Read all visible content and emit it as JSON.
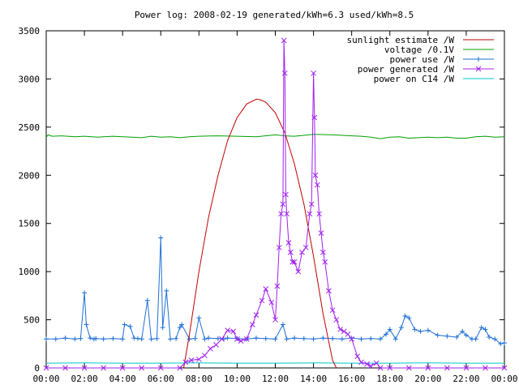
{
  "chart_data": {
    "type": "line",
    "title": "Power log: 2008-02-19 generated/kWh=6.3 used/kWh=8.5",
    "xlabel": "",
    "ylabel": "",
    "xlim": [
      0,
      24
    ],
    "ylim": [
      0,
      3500
    ],
    "x_ticks": [
      {
        "value": 0,
        "label": "00:00"
      },
      {
        "value": 2,
        "label": "02:00"
      },
      {
        "value": 4,
        "label": "04:00"
      },
      {
        "value": 6,
        "label": "06:00"
      },
      {
        "value": 8,
        "label": "08:00"
      },
      {
        "value": 10,
        "label": "10:00"
      },
      {
        "value": 12,
        "label": "12:00"
      },
      {
        "value": 14,
        "label": "14:00"
      },
      {
        "value": 16,
        "label": "16:00"
      },
      {
        "value": 18,
        "label": "18:00"
      },
      {
        "value": 20,
        "label": "20:00"
      },
      {
        "value": 22,
        "label": "22:00"
      },
      {
        "value": 24,
        "label": "00:00"
      }
    ],
    "y_ticks": [
      {
        "value": 0,
        "label": "0"
      },
      {
        "value": 500,
        "label": "500"
      },
      {
        "value": 1000,
        "label": "1000"
      },
      {
        "value": 1500,
        "label": "1500"
      },
      {
        "value": 2000,
        "label": "2000"
      },
      {
        "value": 2500,
        "label": "2500"
      },
      {
        "value": 3000,
        "label": "3000"
      },
      {
        "value": 3500,
        "label": "3500"
      }
    ],
    "grid": false,
    "legend_position": "top-right",
    "series": [
      {
        "name": "sunlight estimate /W",
        "color": "#c00000",
        "marker": "none",
        "x": [
          7.2,
          7.5,
          8.0,
          8.5,
          9.0,
          9.5,
          10.0,
          10.5,
          11.0,
          11.2,
          11.5,
          12.0,
          12.5,
          13.0,
          13.5,
          14.0,
          14.5,
          15.0,
          15.2
        ],
        "y": [
          0,
          350,
          1000,
          1560,
          2000,
          2360,
          2600,
          2740,
          2790,
          2785,
          2760,
          2650,
          2440,
          2120,
          1700,
          1160,
          560,
          80,
          0
        ]
      },
      {
        "name": "voltage /0.1V",
        "color": "#00a000",
        "marker": "none",
        "x": [
          0,
          0.1,
          0.3,
          0.8,
          1.5,
          2.0,
          2.7,
          3.0,
          3.5,
          4.0,
          4.5,
          5.0,
          5.5,
          6.0,
          6.5,
          7.0,
          7.5,
          8.0,
          9.0,
          10.0,
          11.0,
          12.0,
          12.5,
          13.0,
          14.0,
          15.0,
          16.0,
          16.5,
          17.0,
          17.5,
          18.0,
          18.5,
          19.0,
          19.5,
          20.0,
          20.5,
          21.0,
          21.5,
          22.0,
          22.5,
          23.0,
          23.5,
          24.0
        ],
        "y": [
          2395,
          2420,
          2405,
          2410,
          2400,
          2405,
          2395,
          2400,
          2405,
          2400,
          2395,
          2390,
          2405,
          2395,
          2400,
          2390,
          2400,
          2405,
          2410,
          2405,
          2400,
          2420,
          2410,
          2405,
          2425,
          2420,
          2410,
          2405,
          2395,
          2380,
          2395,
          2400,
          2385,
          2390,
          2395,
          2390,
          2395,
          2385,
          2385,
          2400,
          2405,
          2395,
          2400
        ]
      },
      {
        "name": "power use /W",
        "color": "#1f6fd6",
        "marker": "plus",
        "x": [
          0,
          0.5,
          1.0,
          1.5,
          1.8,
          2.0,
          2.1,
          2.3,
          2.5,
          2.6,
          3.0,
          3.5,
          4.0,
          4.1,
          4.4,
          4.6,
          4.8,
          5.0,
          5.3,
          5.5,
          5.8,
          6.0,
          6.1,
          6.3,
          6.5,
          6.8,
          7.0,
          7.1,
          7.5,
          7.8,
          8.0,
          8.3,
          8.5,
          9.0,
          9.3,
          9.5,
          10.0,
          10.5,
          11.0,
          11.5,
          12.0,
          12.4,
          12.6,
          13.0,
          13.5,
          14.0,
          14.5,
          15.0,
          15.5,
          16.0,
          16.5,
          17.0,
          17.5,
          17.8,
          18.0,
          18.3,
          18.6,
          18.8,
          19.0,
          19.3,
          19.6,
          20.0,
          20.5,
          21.0,
          21.5,
          21.8,
          22.0,
          22.3,
          22.5,
          22.8,
          23.0,
          23.2,
          23.5,
          23.8,
          24.0
        ],
        "y": [
          300,
          300,
          310,
          300,
          305,
          780,
          450,
          310,
          300,
          305,
          300,
          305,
          300,
          450,
          430,
          310,
          305,
          300,
          700,
          300,
          305,
          1350,
          420,
          800,
          300,
          305,
          420,
          450,
          300,
          305,
          520,
          300,
          310,
          305,
          300,
          310,
          305,
          300,
          310,
          305,
          300,
          450,
          300,
          310,
          305,
          300,
          310,
          305,
          300,
          310,
          300,
          305,
          300,
          350,
          400,
          300,
          420,
          540,
          520,
          400,
          380,
          390,
          340,
          330,
          320,
          380,
          340,
          300,
          300,
          420,
          400,
          320,
          300,
          250,
          260
        ]
      },
      {
        "name": "power generated /W",
        "color": "#a020f0",
        "marker": "x",
        "x": [
          0,
          1,
          2,
          3,
          4,
          5,
          6,
          7.0,
          7.3,
          7.6,
          8.0,
          8.3,
          8.6,
          8.9,
          9.2,
          9.5,
          9.8,
          10.0,
          10.2,
          10.5,
          10.8,
          11.0,
          11.3,
          11.5,
          11.8,
          12.0,
          12.1,
          12.2,
          12.3,
          12.4,
          12.45,
          12.5,
          12.55,
          12.6,
          12.7,
          12.8,
          12.9,
          13.0,
          13.2,
          13.4,
          13.6,
          13.8,
          13.9,
          14.0,
          14.05,
          14.1,
          14.2,
          14.3,
          14.4,
          14.5,
          14.6,
          14.8,
          15.0,
          15.2,
          15.4,
          15.6,
          15.8,
          16.0,
          16.3,
          16.5,
          16.8,
          17.0,
          17.3,
          17.5,
          18,
          19,
          20,
          21,
          22,
          23,
          24
        ],
        "y": [
          0,
          0,
          0,
          0,
          0,
          0,
          0,
          0,
          60,
          80,
          90,
          130,
          200,
          240,
          300,
          390,
          380,
          300,
          280,
          300,
          450,
          550,
          700,
          820,
          680,
          500,
          850,
          1250,
          1600,
          1700,
          3400,
          3060,
          1800,
          1600,
          1300,
          1200,
          1100,
          1100,
          1000,
          1200,
          1250,
          1600,
          1700,
          3060,
          2600,
          2000,
          1900,
          1600,
          1400,
          1200,
          1100,
          800,
          600,
          500,
          400,
          380,
          350,
          300,
          120,
          60,
          40,
          20,
          50,
          0,
          0,
          0,
          0,
          0,
          0,
          0,
          0
        ]
      },
      {
        "name": "power on C14 /W",
        "color": "#00c8c8",
        "marker": "none",
        "x": [
          0,
          2,
          4,
          6,
          8,
          10,
          12,
          14,
          16,
          18,
          20,
          22,
          24
        ],
        "y": [
          50,
          52,
          50,
          50,
          52,
          50,
          50,
          52,
          50,
          50,
          52,
          50,
          50
        ]
      }
    ]
  }
}
